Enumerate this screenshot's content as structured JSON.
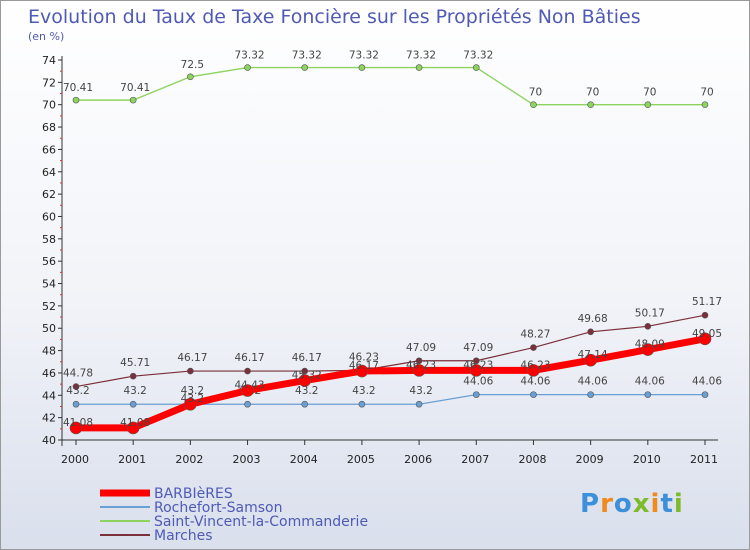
{
  "chart_data": {
    "type": "line",
    "title": "Evolution du Taux de Taxe Foncière sur les Propriétés Non Bâties",
    "subtitle": "(en %)",
    "x": [
      2000,
      2001,
      2002,
      2003,
      2004,
      2005,
      2006,
      2007,
      2008,
      2009,
      2010,
      2011
    ],
    "ylim": [
      40,
      74
    ],
    "yticks": [
      40,
      42,
      44,
      46,
      48,
      50,
      52,
      54,
      56,
      58,
      60,
      62,
      64,
      66,
      68,
      70,
      72,
      74
    ],
    "grid": false,
    "legend": "bottom-left",
    "series": [
      {
        "name": "Saint-Vincent-la-Commanderie",
        "color": "#8dd35f",
        "values": [
          70.41,
          70.41,
          72.5,
          73.32,
          73.32,
          73.32,
          73.32,
          73.32,
          70,
          70,
          70,
          70
        ],
        "labels": [
          "70.41",
          "70.41",
          "72.5",
          "73.32",
          "73.32",
          "73.32",
          "73.32",
          "73.32",
          "70",
          "70",
          "70",
          "70"
        ]
      },
      {
        "name": "Marches",
        "color": "#7b2f3a",
        "values": [
          44.78,
          45.71,
          46.17,
          46.17,
          46.17,
          46.23,
          47.09,
          47.09,
          48.27,
          49.68,
          50.17,
          51.17
        ],
        "labels": [
          "44.78",
          "45.71",
          "46.17",
          "46.17",
          "46.17",
          "46.23",
          "47.09",
          "47.09",
          "48.27",
          "49.68",
          "50.17",
          "51.17"
        ]
      },
      {
        "name": "Rochefort-Samson",
        "color": "#6a9fd4",
        "values": [
          43.2,
          43.2,
          43.2,
          43.2,
          43.2,
          43.2,
          43.2,
          44.06,
          44.06,
          44.06,
          44.06,
          44.06
        ],
        "labels": [
          "43.2",
          "43.2",
          "43.2",
          "43.2",
          "43.2",
          "43.2",
          "43.2",
          "44.06",
          "44.06",
          "44.06",
          "44.06",
          "44.06"
        ]
      },
      {
        "name": "BARBIèRES",
        "color": "#ff0000",
        "values": [
          41.08,
          41.08,
          43.2,
          44.43,
          45.32,
          46.17,
          46.23,
          46.23,
          46.23,
          47.14,
          48.09,
          49.05
        ],
        "labels": [
          "41.08",
          "41.08",
          "43.2",
          "44.43",
          "45.32",
          "46.17",
          "46.23",
          "46.23",
          "46.23",
          "47.14",
          "48.09",
          "49.05"
        ]
      }
    ],
    "legend_order": [
      "BARBIèRES",
      "Rochefort-Samson",
      "Saint-Vincent-la-Commanderie",
      "Marches"
    ]
  },
  "logo": {
    "text": "Proxiti",
    "letters": [
      "P",
      "r",
      "o",
      "x",
      "i",
      "t",
      "i"
    ],
    "colors": [
      "#3c8fd9",
      "#f08a1a",
      "#3c8fd9",
      "#7dbb2a",
      "#f08a1a",
      "#3c8fd9",
      "#7dbb2a"
    ]
  }
}
